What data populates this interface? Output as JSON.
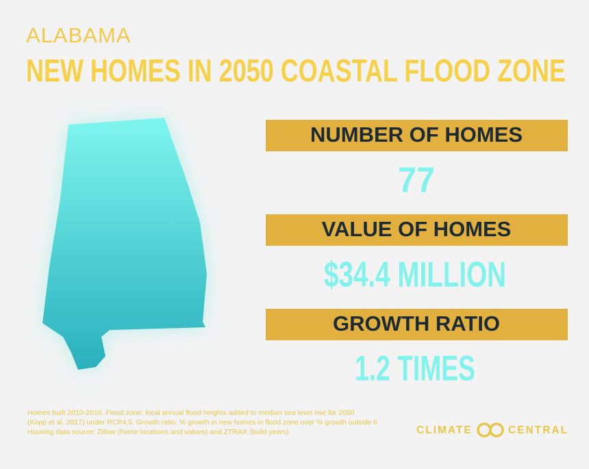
{
  "header": {
    "state": "ALABAMA",
    "title": "NEW HOMES IN 2050 COASTAL FLOOD ZONE"
  },
  "stats": [
    {
      "label": "NUMBER OF HOMES",
      "value": "77"
    },
    {
      "label": "VALUE OF HOMES",
      "value": "$34.4 MILLION"
    },
    {
      "label": "GROWTH RATIO",
      "value": "1.2 TIMES"
    }
  ],
  "footnote": [
    "Homes built 2010-2016. Flood zone: local annual flood heights added to median sea level rise for 2050",
    "(Kopp et al. 2017) under RCP4.5. Growth ratio: % growth in new homes in flood zone over % growth outside it",
    "Housing data source: Zillow (home locations and values) and ZTRAX (build years)"
  ],
  "logo": {
    "left": "CLIMATE",
    "right": "CENTRAL"
  }
}
